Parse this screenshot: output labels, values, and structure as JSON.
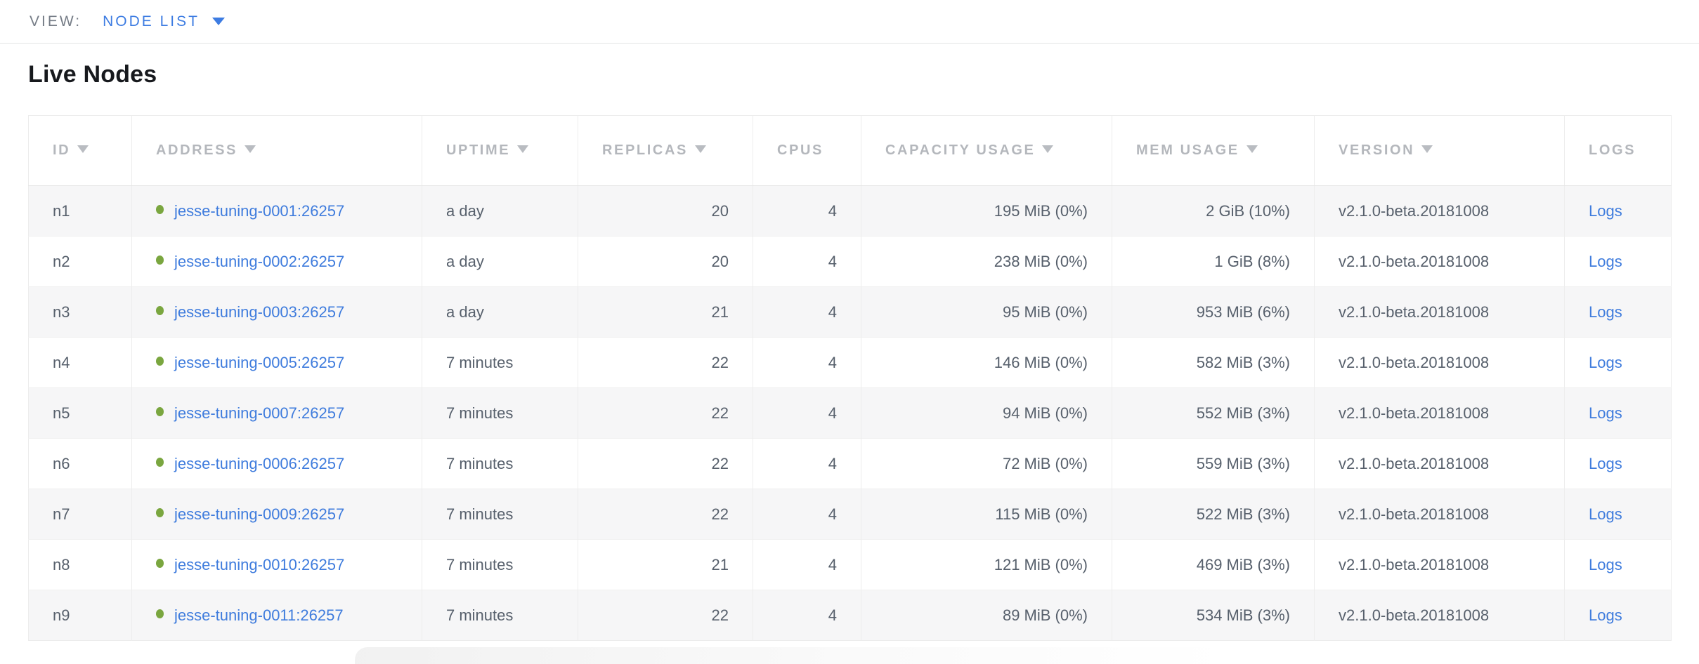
{
  "view_bar": {
    "label": "VIEW:",
    "selected": "NODE LIST"
  },
  "page": {
    "title": "Live Nodes"
  },
  "colors": {
    "accent_blue": "#3d7ce2",
    "link_blue": "#3f7cdd",
    "live_node_green": "#7aa63f",
    "header_gray": "#b4b7bc",
    "cell_slate": "#57606c",
    "stripe_gray": "#f6f6f7"
  },
  "icons": {
    "sort_descending": "caret-down-triangle",
    "dropdown_caret": "caret-down-triangle",
    "live_status": "green-dot"
  },
  "table": {
    "columns": [
      {
        "key": "id",
        "label": "ID",
        "sortable": true
      },
      {
        "key": "address",
        "label": "ADDRESS",
        "sortable": true
      },
      {
        "key": "uptime",
        "label": "UPTIME",
        "sortable": true
      },
      {
        "key": "replicas",
        "label": "REPLICAS",
        "sortable": true
      },
      {
        "key": "cpus",
        "label": "CPUS",
        "sortable": false
      },
      {
        "key": "capacity",
        "label": "CAPACITY USAGE",
        "sortable": true
      },
      {
        "key": "mem",
        "label": "MEM USAGE",
        "sortable": true
      },
      {
        "key": "version",
        "label": "VERSION",
        "sortable": true
      },
      {
        "key": "logs",
        "label": "LOGS",
        "sortable": false
      }
    ],
    "rows": [
      {
        "id": "n1",
        "address": "jesse-tuning-0001:26257",
        "uptime": "a day",
        "replicas": "20",
        "cpus": "4",
        "capacity": "195 MiB (0%)",
        "mem": "2 GiB (10%)",
        "version": "v2.1.0-beta.20181008",
        "logs": "Logs"
      },
      {
        "id": "n2",
        "address": "jesse-tuning-0002:26257",
        "uptime": "a day",
        "replicas": "20",
        "cpus": "4",
        "capacity": "238 MiB (0%)",
        "mem": "1 GiB (8%)",
        "version": "v2.1.0-beta.20181008",
        "logs": "Logs"
      },
      {
        "id": "n3",
        "address": "jesse-tuning-0003:26257",
        "uptime": "a day",
        "replicas": "21",
        "cpus": "4",
        "capacity": "95 MiB (0%)",
        "mem": "953 MiB (6%)",
        "version": "v2.1.0-beta.20181008",
        "logs": "Logs"
      },
      {
        "id": "n4",
        "address": "jesse-tuning-0005:26257",
        "uptime": "7 minutes",
        "replicas": "22",
        "cpus": "4",
        "capacity": "146 MiB (0%)",
        "mem": "582 MiB (3%)",
        "version": "v2.1.0-beta.20181008",
        "logs": "Logs"
      },
      {
        "id": "n5",
        "address": "jesse-tuning-0007:26257",
        "uptime": "7 minutes",
        "replicas": "22",
        "cpus": "4",
        "capacity": "94 MiB (0%)",
        "mem": "552 MiB (3%)",
        "version": "v2.1.0-beta.20181008",
        "logs": "Logs"
      },
      {
        "id": "n6",
        "address": "jesse-tuning-0006:26257",
        "uptime": "7 minutes",
        "replicas": "22",
        "cpus": "4",
        "capacity": "72 MiB (0%)",
        "mem": "559 MiB (3%)",
        "version": "v2.1.0-beta.20181008",
        "logs": "Logs"
      },
      {
        "id": "n7",
        "address": "jesse-tuning-0009:26257",
        "uptime": "7 minutes",
        "replicas": "22",
        "cpus": "4",
        "capacity": "115 MiB (0%)",
        "mem": "522 MiB (3%)",
        "version": "v2.1.0-beta.20181008",
        "logs": "Logs"
      },
      {
        "id": "n8",
        "address": "jesse-tuning-0010:26257",
        "uptime": "7 minutes",
        "replicas": "21",
        "cpus": "4",
        "capacity": "121 MiB (0%)",
        "mem": "469 MiB (3%)",
        "version": "v2.1.0-beta.20181008",
        "logs": "Logs"
      },
      {
        "id": "n9",
        "address": "jesse-tuning-0011:26257",
        "uptime": "7 minutes",
        "replicas": "22",
        "cpus": "4",
        "capacity": "89 MiB (0%)",
        "mem": "534 MiB (3%)",
        "version": "v2.1.0-beta.20181008",
        "logs": "Logs"
      }
    ]
  }
}
